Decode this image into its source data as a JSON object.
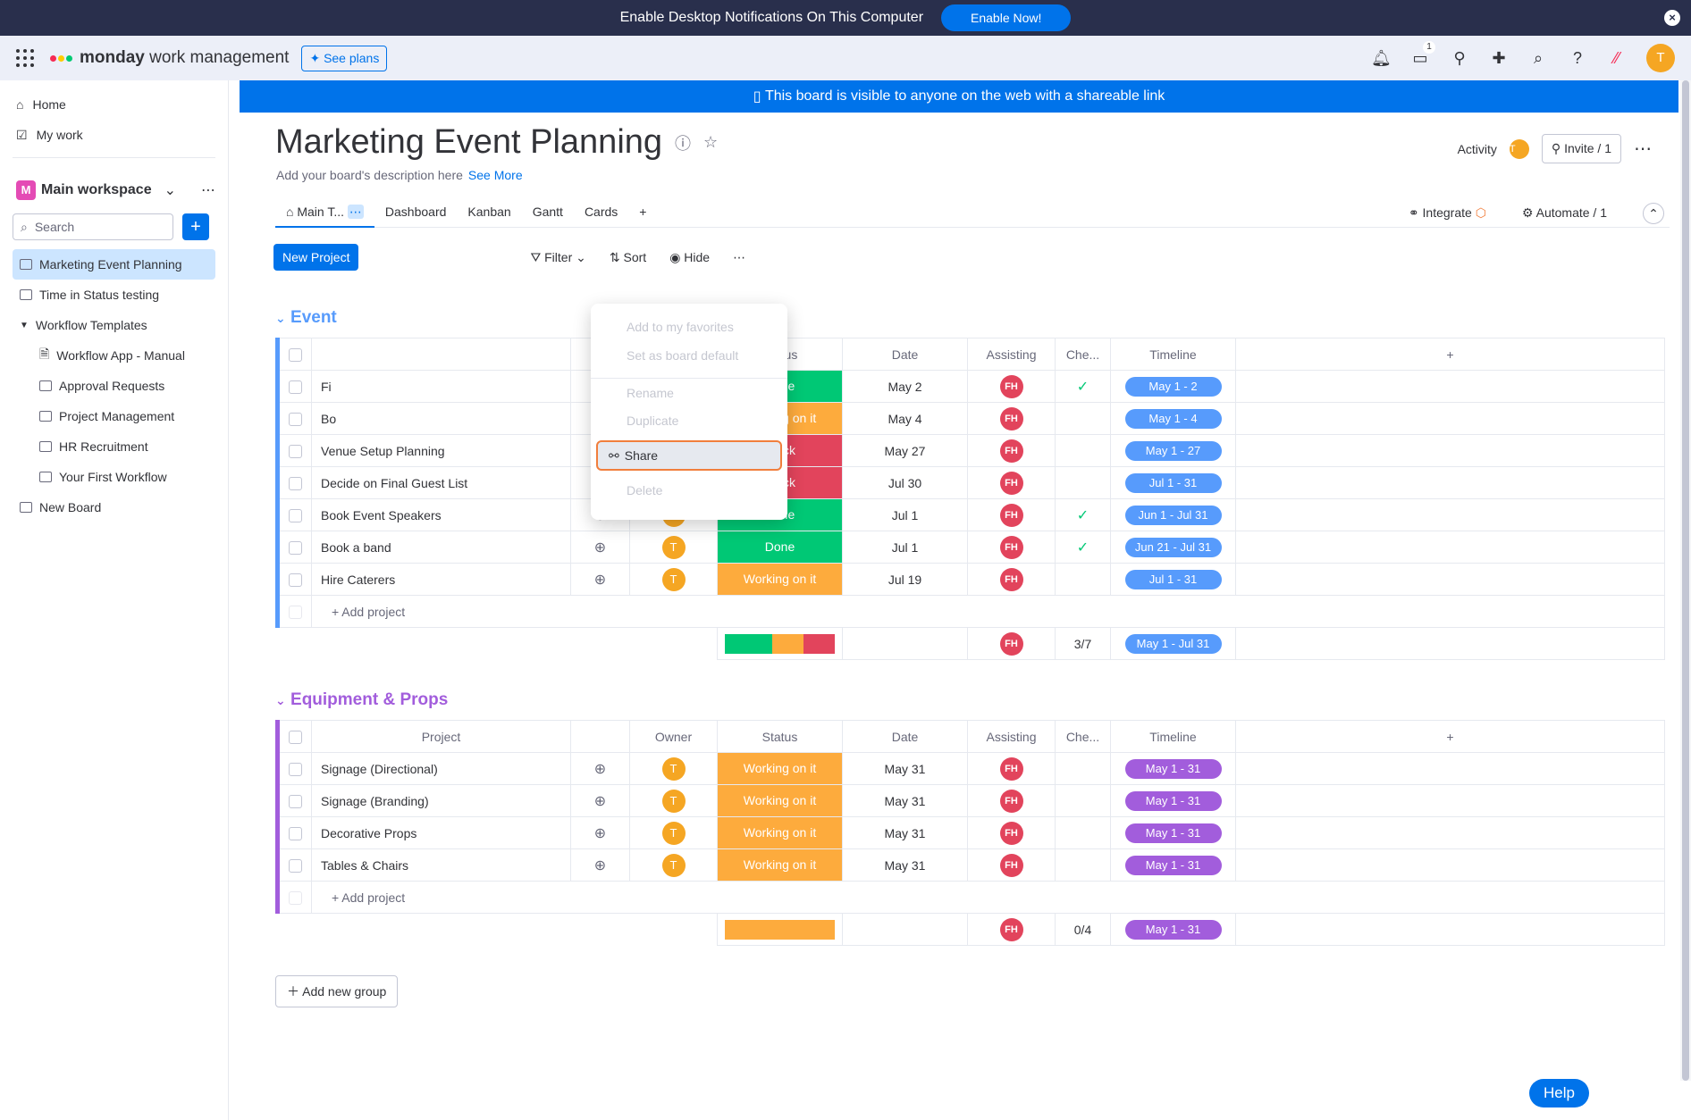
{
  "notification": {
    "text": "Enable Desktop Notifications On This Computer",
    "button": "Enable Now!"
  },
  "topbar": {
    "brand": "monday",
    "brand_suffix": "work management",
    "see_plans": "See plans",
    "inbox_count": "1",
    "avatar": "T"
  },
  "sidebar": {
    "home": "Home",
    "my_work": "My work",
    "workspace": "Main workspace",
    "workspace_letter": "M",
    "search_placeholder": "Search",
    "boards": [
      "Marketing Event Planning",
      "Time in Status testing",
      "Workflow Templates",
      "Workflow App - Manual",
      "Approval Requests",
      "Project Management",
      "HR Recruitment",
      "Your First Workflow",
      "New Board"
    ]
  },
  "banner": "This board is visible to anyone on the web with a shareable link",
  "board": {
    "title": "Marketing Event Planning",
    "description": "Add your board's description here",
    "see_more": "See More",
    "activity": "Activity",
    "invite": "Invite / 1",
    "tabs": [
      "Main T...",
      "Dashboard",
      "Kanban",
      "Gantt",
      "Cards",
      "+"
    ],
    "integrate": "Integrate",
    "automate": "Automate / 1",
    "new_project": "New Project",
    "filter": "Filter",
    "sort": "Sort",
    "hide": "Hide"
  },
  "dropdown": {
    "favorites": "Add to my favorites",
    "default": "Set as board default",
    "rename": "Rename",
    "duplicate": "Duplicate",
    "share": "Share",
    "delete": "Delete"
  },
  "columns": {
    "project": "Project",
    "owner": "Owner",
    "status": "Status",
    "date": "Date",
    "assisting": "Assisting",
    "check": "Che...",
    "timeline": "Timeline"
  },
  "groups": [
    {
      "title": "Event",
      "color": "#579bfc",
      "rows": [
        {
          "name": "Fi",
          "status": "Done",
          "date": "May 2",
          "check": true,
          "timeline": "May 1 - 2"
        },
        {
          "name": "Bo",
          "status": "Working on it",
          "date": "May 4",
          "check": false,
          "timeline": "May 1 - 4"
        },
        {
          "name": "Venue Setup Planning",
          "status": "Stuck",
          "date": "May 27",
          "check": false,
          "timeline": "May 1 - 27"
        },
        {
          "name": "Decide on Final Guest List",
          "status": "Stuck",
          "date": "Jul 30",
          "check": false,
          "timeline": "Jul 1 - 31"
        },
        {
          "name": "Book Event Speakers",
          "status": "Done",
          "date": "Jul 1",
          "check": true,
          "timeline": "Jun 1 - Jul 31"
        },
        {
          "name": "Book a band",
          "status": "Done",
          "date": "Jul 1",
          "check": true,
          "timeline": "Jun 21 - Jul 31"
        },
        {
          "name": "Hire Caterers",
          "status": "Working on it",
          "date": "Jul 19",
          "check": false,
          "timeline": "Jul 1 - 31"
        }
      ],
      "add": "+ Add project",
      "summary_check": "3/7",
      "summary_timeline": "May 1 - Jul 31"
    },
    {
      "title": "Equipment & Props",
      "color": "#a25ddc",
      "rows": [
        {
          "name": "Signage (Directional)",
          "status": "Working on it",
          "date": "May 31",
          "check": false,
          "timeline": "May 1 - 31"
        },
        {
          "name": "Signage (Branding)",
          "status": "Working on it",
          "date": "May 31",
          "check": false,
          "timeline": "May 1 - 31"
        },
        {
          "name": "Decorative Props",
          "status": "Working on it",
          "date": "May 31",
          "check": false,
          "timeline": "May 1 - 31"
        },
        {
          "name": "Tables & Chairs",
          "status": "Working on it",
          "date": "May 31",
          "check": false,
          "timeline": "May 1 - 31"
        }
      ],
      "add": "+ Add project",
      "summary_check": "0/4",
      "summary_timeline": "May 1 - 31"
    }
  ],
  "status_colors": {
    "Done": "#00c875",
    "Working on it": "#fdab3d",
    "Stuck": "#e2445c"
  },
  "add_group": "Add new group",
  "help": "Help"
}
